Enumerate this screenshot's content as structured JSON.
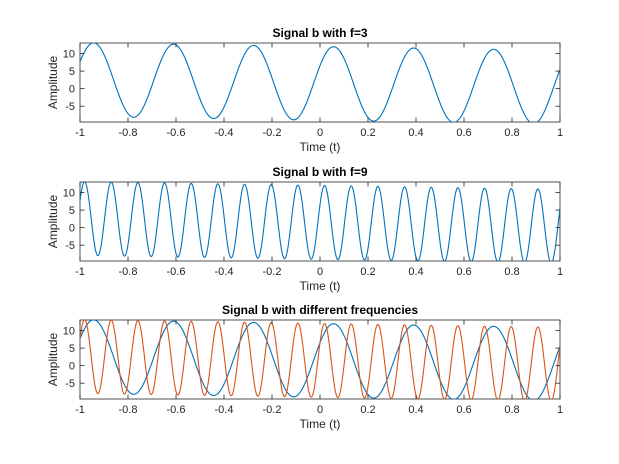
{
  "figure": {
    "background": "#ffffff"
  },
  "chart_data": [
    {
      "type": "line",
      "title": "Signal b with f=3",
      "xlabel": "Time (t)",
      "ylabel": "Amplitude",
      "xlim": [
        -1,
        1
      ],
      "ylim": [
        -9.5,
        13
      ],
      "xticks": [
        -1,
        -0.8,
        -0.6,
        -0.4,
        -0.2,
        0,
        0.2,
        0.4,
        0.6,
        0.8,
        1
      ],
      "xtick_labels": [
        "-1",
        "-0.8",
        "-0.6",
        "-0.4",
        "-0.2",
        "0",
        "0.2",
        "0.4",
        "0.6",
        "0.8",
        "1"
      ],
      "yticks": [
        -5,
        0,
        5,
        10
      ],
      "ytick_labels": [
        "-5",
        "0",
        "5",
        "10"
      ],
      "grid": false,
      "series": [
        {
          "color": "#0072BD",
          "formula": "b(t) = 1.5 + 10.5*sin(2*pi*3*t + 0.5) - 1.1*t",
          "samples": 600,
          "values": [
            {
              "t": -1.0,
              "b": 8.2
            },
            {
              "t": -0.917,
              "b": 13.0
            },
            {
              "t": -0.75,
              "b": -7.7
            },
            {
              "t": -0.583,
              "b": 12.6
            },
            {
              "t": -0.417,
              "b": -8.1
            },
            {
              "t": -0.25,
              "b": 12.3
            },
            {
              "t": -0.083,
              "b": -8.5
            },
            {
              "t": 0.083,
              "b": 12.2
            },
            {
              "t": 0.25,
              "b": -8.8
            },
            {
              "t": 0.417,
              "b": 11.7
            },
            {
              "t": 0.583,
              "b": -9.2
            },
            {
              "t": 0.75,
              "b": 10.9
            },
            {
              "t": 0.917,
              "b": -9.6
            },
            {
              "t": 1.0,
              "b": -0.8
            }
          ]
        }
      ]
    },
    {
      "type": "line",
      "title": "Signal b with f=9",
      "xlabel": "Time (t)",
      "ylabel": "Amplitude",
      "xlim": [
        -1,
        1
      ],
      "ylim": [
        -9.5,
        13
      ],
      "xticks": [
        -1,
        -0.8,
        -0.6,
        -0.4,
        -0.2,
        0,
        0.2,
        0.4,
        0.6,
        0.8,
        1
      ],
      "xtick_labels": [
        "-1",
        "-0.8",
        "-0.6",
        "-0.4",
        "-0.2",
        "0",
        "0.2",
        "0.4",
        "0.6",
        "0.8",
        "1"
      ],
      "yticks": [
        -5,
        0,
        5,
        10
      ],
      "ytick_labels": [
        "-5",
        "0",
        "5",
        "10"
      ],
      "grid": false,
      "series": [
        {
          "color": "#0072BD",
          "formula": "b(t) = 1.5 + 10.5*sin(2*pi*9*t + 0.5) - 1.1*t",
          "samples": 1200,
          "values": [
            {
              "t": -1.0,
              "b": 7.6
            },
            {
              "t": -0.972,
              "b": 13.0
            },
            {
              "t": -0.917,
              "b": -7.9
            },
            {
              "t": 0.0,
              "b": 6.5
            },
            {
              "t": 0.5,
              "b": -8.9
            },
            {
              "t": 1.0,
              "b": -0.8
            }
          ]
        }
      ]
    },
    {
      "type": "line",
      "title": "Signal b with different frequencies",
      "xlabel": "Time (t)",
      "ylabel": "Amplitude",
      "xlim": [
        -1,
        1
      ],
      "ylim": [
        -9.5,
        13
      ],
      "xticks": [
        -1,
        -0.8,
        -0.6,
        -0.4,
        -0.2,
        0,
        0.2,
        0.4,
        0.6,
        0.8,
        1
      ],
      "xtick_labels": [
        "-1",
        "-0.8",
        "-0.6",
        "-0.4",
        "-0.2",
        "0",
        "0.2",
        "0.4",
        "0.6",
        "0.8",
        "1"
      ],
      "yticks": [
        -5,
        0,
        5,
        10
      ],
      "ytick_labels": [
        "-5",
        "0",
        "5",
        "10"
      ],
      "grid": false,
      "series": [
        {
          "color": "#0072BD",
          "formula": "b(t) = 1.5 + 10.5*sin(2*pi*3*t + 0.5) - 1.1*t",
          "samples": 600
        },
        {
          "color": "#D95319",
          "formula": "b(t) = 1.5 + 10.5*sin(2*pi*9*t + 0.5) - 1.1*t",
          "samples": 1200
        }
      ]
    }
  ]
}
